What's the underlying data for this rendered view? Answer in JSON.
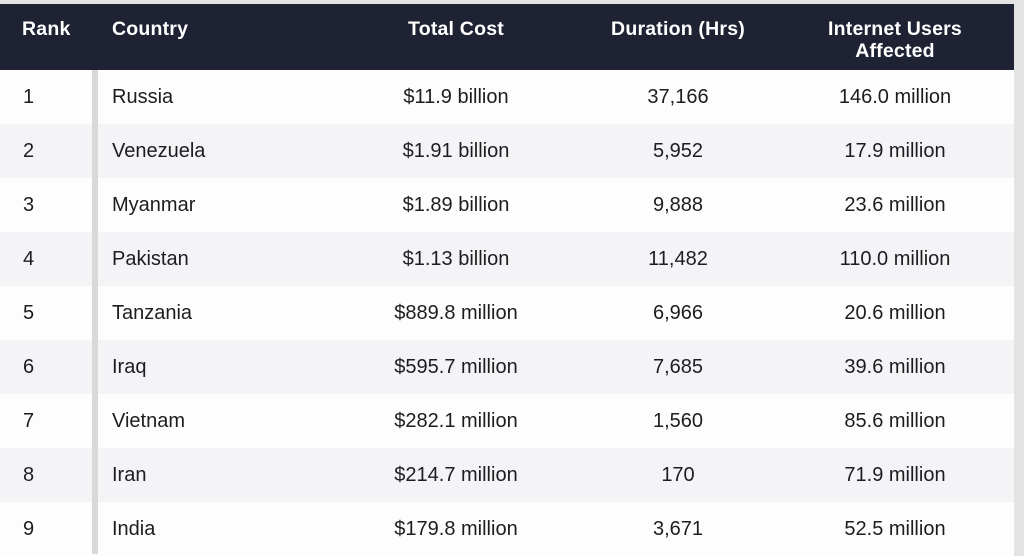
{
  "colors": {
    "page_bg": "#e3e3e4",
    "header_bg": "#1f2233",
    "header_text": "#ffffff",
    "row_odd": "#fdfdfd",
    "row_even": "#f4f4f6",
    "rank_divider": "#d9d9da",
    "body_text": "#1d1d1f"
  },
  "chart_data": {
    "type": "table",
    "columns": [
      "Rank",
      "Country",
      "Total Cost",
      "Duration (Hrs)",
      "Internet Users Affected"
    ],
    "rows": [
      [
        "1",
        "Russia",
        "$11.9 billion",
        "37,166",
        "146.0 million"
      ],
      [
        "2",
        "Venezuela",
        "$1.91 billion",
        "5,952",
        "17.9 million"
      ],
      [
        "3",
        "Myanmar",
        "$1.89 billion",
        "9,888",
        "23.6 million"
      ],
      [
        "4",
        "Pakistan",
        "$1.13 billion",
        "11,482",
        "110.0 million"
      ],
      [
        "5",
        "Tanzania",
        "$889.8 million",
        "6,966",
        "20.6 million"
      ],
      [
        "6",
        "Iraq",
        "$595.7 million",
        "7,685",
        "39.6 million"
      ],
      [
        "7",
        "Vietnam",
        "$282.1 million",
        "1,560",
        "85.6 million"
      ],
      [
        "8",
        "Iran",
        "$214.7 million",
        "170",
        "71.9 million"
      ],
      [
        "9",
        "India",
        "$179.8 million",
        "3,671",
        "52.5 million"
      ]
    ]
  }
}
